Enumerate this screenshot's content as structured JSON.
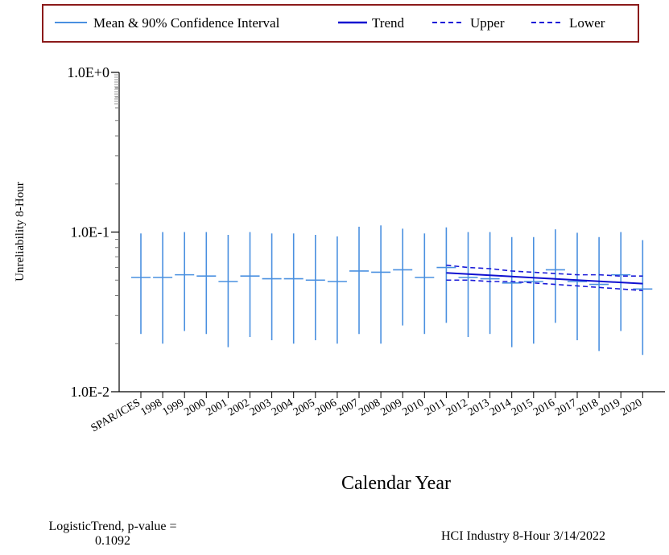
{
  "chart_data": {
    "type": "line",
    "title": "",
    "xlabel": "Calendar Year",
    "ylabel": "Unreliability 8-Hour",
    "yscale": "log",
    "ylim": [
      0.01,
      1.0
    ],
    "yticks": [
      {
        "value": 1.0,
        "label": "1.0E+0"
      },
      {
        "value": 0.1,
        "label": "1.0E-1"
      },
      {
        "value": 0.01,
        "label": "1.0E-2"
      }
    ],
    "categories": [
      "SPAR/ICES",
      "1998",
      "1999",
      "2000",
      "2001",
      "2002",
      "2003",
      "2004",
      "2005",
      "2006",
      "2007",
      "2008",
      "2009",
      "2010",
      "2011",
      "2012",
      "2013",
      "2014",
      "2015",
      "2016",
      "2017",
      "2018",
      "2019",
      "2020"
    ],
    "legend_position": "top",
    "colors": {
      "mean_ci": "#4a90e0",
      "trend": "#1010d0",
      "bounds": "#1a1ad8",
      "legend_border": "#8b1a1a"
    },
    "series": [
      {
        "name": "Mean & 90% Confidence Interval",
        "kind": "mean_ci",
        "mean": [
          0.052,
          0.052,
          0.054,
          0.053,
          0.049,
          0.053,
          0.051,
          0.051,
          0.05,
          0.049,
          0.057,
          0.056,
          0.058,
          0.052,
          0.06,
          0.052,
          0.051,
          0.048,
          0.049,
          0.058,
          0.049,
          0.047,
          0.054,
          0.044
        ],
        "lower": [
          0.023,
          0.02,
          0.024,
          0.023,
          0.019,
          0.022,
          0.021,
          0.02,
          0.021,
          0.02,
          0.023,
          0.02,
          0.026,
          0.023,
          0.027,
          0.022,
          0.023,
          0.019,
          0.02,
          0.027,
          0.021,
          0.018,
          0.024,
          0.017
        ],
        "upper": [
          0.098,
          0.1,
          0.1,
          0.1,
          0.096,
          0.1,
          0.098,
          0.098,
          0.096,
          0.094,
          0.108,
          0.11,
          0.105,
          0.098,
          0.107,
          0.1,
          0.1,
          0.093,
          0.093,
          0.104,
          0.099,
          0.093,
          0.1,
          0.089
        ]
      },
      {
        "name": "Trend",
        "kind": "trend",
        "x": [
          "2011",
          "2020"
        ],
        "values": [
          0.0555,
          0.0475
        ]
      },
      {
        "name": "Upper",
        "kind": "upper",
        "x": [
          "2011",
          "2012",
          "2013",
          "2014",
          "2015",
          "2016",
          "2017",
          "2018",
          "2019",
          "2020"
        ],
        "values": [
          0.062,
          0.06,
          0.059,
          0.057,
          0.056,
          0.055,
          0.054,
          0.054,
          0.053,
          0.053
        ]
      },
      {
        "name": "Lower",
        "kind": "lower",
        "x": [
          "2011",
          "2012",
          "2013",
          "2014",
          "2015",
          "2016",
          "2017",
          "2018",
          "2019",
          "2020"
        ],
        "values": [
          0.05,
          0.05,
          0.049,
          0.049,
          0.048,
          0.047,
          0.046,
          0.045,
          0.044,
          0.043
        ]
      }
    ]
  },
  "annotations": {
    "trend_note_line1": "LogisticTrend, p-value =",
    "trend_note_line2": "0.1092",
    "source_note": "HCI Industry 8-Hour 3/14/2022"
  }
}
